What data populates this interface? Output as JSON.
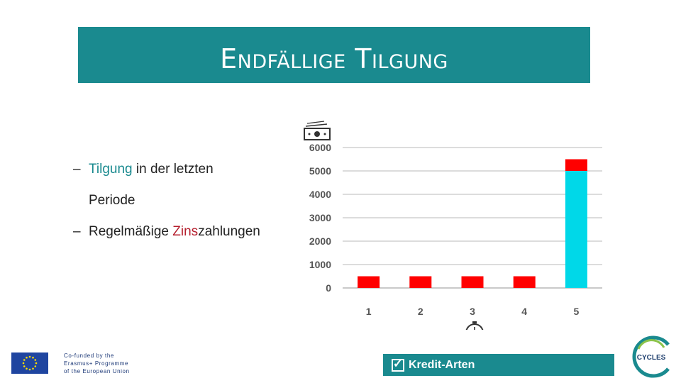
{
  "slide": {
    "title": "Endfällige Tilgung",
    "bullets": [
      {
        "highlight": "Tilgung",
        "rest1": " in der letzten",
        "rest2": "Periode"
      },
      {
        "prefix": "Regelmäßige ",
        "highlight": "Zins",
        "suffix": "zahlungen"
      }
    ]
  },
  "chart_data": {
    "type": "bar",
    "categories": [
      "1",
      "2",
      "3",
      "4",
      "5"
    ],
    "series": [
      {
        "values": [
          0,
          0,
          0,
          0,
          5000
        ],
        "color": "#00d8e8"
      },
      {
        "values": [
          500,
          500,
          500,
          500,
          500
        ],
        "color": "#ff0000"
      }
    ],
    "stacked": true,
    "ylim": [
      0,
      6000
    ],
    "yticks": [
      "0",
      "1000",
      "2000",
      "3000",
      "4000",
      "5000",
      "6000"
    ],
    "grid": true
  },
  "icons": {
    "money": "money-icon",
    "stopwatch": "stopwatch-icon"
  },
  "footer": {
    "eu_lines": [
      "Co-funded by the",
      "Erasmus+ Programme",
      "of the European Union"
    ],
    "kredit_label": "Kredit-Arten",
    "logo_text": "CYCLES"
  }
}
